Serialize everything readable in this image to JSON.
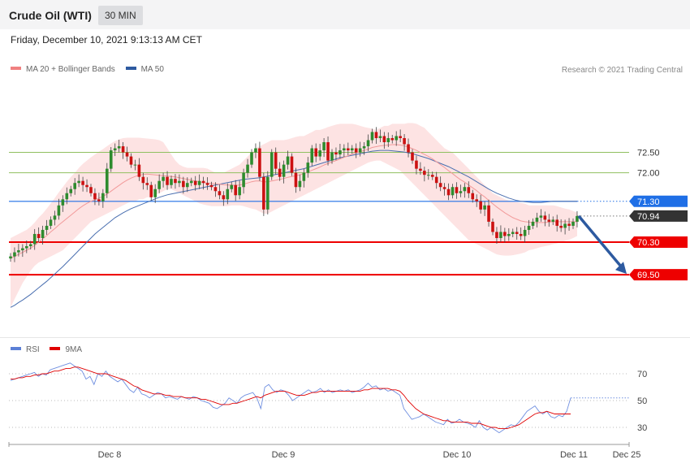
{
  "header": {
    "title": "Crude Oil (WTI)",
    "interval": "30 MIN"
  },
  "datetime": "Friday, December 10, 2021 9:13:13 AM CET",
  "legend_main": [
    {
      "label": "MA 20 + Bollinger Bands",
      "color": "#f08080"
    },
    {
      "label": "MA 50",
      "color": "#2d5aa0"
    }
  ],
  "copyright": "Research © 2021 Trading Central",
  "legend_rsi": [
    {
      "label": "RSI",
      "color": "#5b7fd6"
    },
    {
      "label": "9MA",
      "color": "#e00000"
    }
  ],
  "colors": {
    "up": "#2e8b2e",
    "down": "#cc1111",
    "level_red": "#ee0000",
    "level_blue": "#1f6fe6",
    "level_green": "#90c060",
    "arrow": "#2d5aa0",
    "last_price": "#333333",
    "band": "#fde3e3"
  },
  "chart_data": [
    {
      "type": "candlestick",
      "title": "Crude Oil (WTI)",
      "interval": "30 MIN",
      "x_ticks": [
        "Dec 8",
        "Dec 9",
        "Dec 10",
        "Dec 11",
        "Dec 25"
      ],
      "ylim": [
        68.6,
        73.2
      ],
      "levels": [
        {
          "value": 72.5,
          "label": "72.50",
          "style": "green-thin"
        },
        {
          "value": 72.0,
          "label": "72.00",
          "style": "green-thin"
        },
        {
          "value": 71.3,
          "label": "71.30",
          "style": "blue"
        },
        {
          "value": 70.94,
          "label": "70.94",
          "style": "last-price"
        },
        {
          "value": 70.3,
          "label": "70.30",
          "style": "red"
        },
        {
          "value": 69.5,
          "label": "69.50",
          "style": "red"
        }
      ],
      "close": [
        69.95,
        70.05,
        70.1,
        70.15,
        70.2,
        70.25,
        70.5,
        70.4,
        70.6,
        70.7,
        70.85,
        70.95,
        71.2,
        71.35,
        71.5,
        71.6,
        71.75,
        71.8,
        71.7,
        71.65,
        71.5,
        71.35,
        71.3,
        71.5,
        72.1,
        72.55,
        72.6,
        72.65,
        72.5,
        72.4,
        72.2,
        72.2,
        71.9,
        71.75,
        71.7,
        71.4,
        71.6,
        71.8,
        71.9,
        71.7,
        71.85,
        71.75,
        71.8,
        71.65,
        71.75,
        71.8,
        71.7,
        71.8,
        71.75,
        71.7,
        71.65,
        71.55,
        71.45,
        71.35,
        71.6,
        71.7,
        71.45,
        71.65,
        72.0,
        72.2,
        72.5,
        72.6,
        71.9,
        71.1,
        71.9,
        72.5,
        72.1,
        71.9,
        72.2,
        72.4,
        72.0,
        71.65,
        71.8,
        72.0,
        72.25,
        72.6,
        72.4,
        72.55,
        72.75,
        72.3,
        72.5,
        72.45,
        72.55,
        72.6,
        72.55,
        72.6,
        72.5,
        72.6,
        72.65,
        72.8,
        73.0,
        72.85,
        72.9,
        72.75,
        72.85,
        72.8,
        72.9,
        72.85,
        72.7,
        72.5,
        72.3,
        72.1,
        72.05,
        71.95,
        71.95,
        71.9,
        71.75,
        71.65,
        71.6,
        71.45,
        71.65,
        71.5,
        71.55,
        71.65,
        71.5,
        71.35,
        71.3,
        71.1,
        71.2,
        70.8,
        70.55,
        70.4,
        70.55,
        70.45,
        70.5,
        70.55,
        70.5,
        70.45,
        70.6,
        70.7,
        70.8,
        70.9,
        70.95,
        70.85,
        70.8,
        70.85,
        70.7,
        70.65,
        70.75,
        70.7,
        70.8,
        70.94
      ],
      "ma20": [
        69.9,
        69.95,
        70.0,
        70.05,
        70.1,
        70.15,
        70.22,
        70.3,
        70.38,
        70.46,
        70.55,
        70.63,
        70.72,
        70.8,
        70.88,
        70.96,
        71.04,
        71.12,
        71.19,
        71.25,
        71.3,
        71.34,
        71.38,
        71.42,
        71.48,
        71.55,
        71.62,
        71.69,
        71.76,
        71.82,
        71.87,
        71.91,
        71.94,
        71.96,
        71.97,
        71.96,
        71.95,
        71.94,
        71.93,
        71.92,
        71.91,
        71.9,
        71.88,
        71.86,
        71.84,
        71.82,
        71.8,
        71.78,
        71.76,
        71.75,
        71.74,
        71.73,
        71.72,
        71.71,
        71.7,
        71.7,
        71.69,
        71.7,
        71.72,
        71.75,
        71.78,
        71.8,
        71.8,
        71.78,
        71.78,
        71.8,
        71.82,
        71.84,
        71.86,
        71.89,
        71.91,
        71.93,
        71.95,
        71.98,
        72.02,
        72.06,
        72.1,
        72.14,
        72.19,
        72.23,
        72.27,
        72.3,
        72.34,
        72.38,
        72.42,
        72.46,
        72.49,
        72.52,
        72.55,
        72.58,
        72.62,
        72.64,
        72.66,
        72.67,
        72.68,
        72.69,
        72.69,
        72.68,
        72.66,
        72.63,
        72.59,
        72.55,
        72.5,
        72.45,
        72.4,
        72.34,
        72.27,
        72.2,
        72.13,
        72.05,
        71.98,
        71.9,
        71.83,
        71.77,
        71.7,
        71.63,
        71.56,
        71.48,
        71.41,
        71.32,
        71.24,
        71.16,
        71.09,
        71.02,
        70.96,
        70.9,
        70.86,
        70.82,
        70.8,
        70.79,
        70.78,
        70.78,
        70.78,
        70.78,
        70.79,
        70.8,
        70.8,
        70.8,
        70.8,
        70.8,
        70.8,
        70.8
      ],
      "bb_upper": [
        70.4,
        70.45,
        70.5,
        70.55,
        70.6,
        70.68,
        70.78,
        70.9,
        71.0,
        71.12,
        71.25,
        71.38,
        71.52,
        71.65,
        71.78,
        71.9,
        72.0,
        72.12,
        72.22,
        72.3,
        72.38,
        72.45,
        72.52,
        72.58,
        72.65,
        72.72,
        72.78,
        72.82,
        72.85,
        72.86,
        72.86,
        72.86,
        72.86,
        72.85,
        72.84,
        72.83,
        72.82,
        72.8,
        72.75,
        72.6,
        72.45,
        72.3,
        72.2,
        72.15,
        72.12,
        72.12,
        72.12,
        72.12,
        72.12,
        72.1,
        72.05,
        72.0,
        72.0,
        72.0,
        72.05,
        72.1,
        72.15,
        72.2,
        72.3,
        72.4,
        72.5,
        72.6,
        72.65,
        72.7,
        72.75,
        72.8,
        72.8,
        72.8,
        72.8,
        72.82,
        72.85,
        72.88,
        72.9,
        72.9,
        72.95,
        73.0,
        73.05,
        73.05,
        73.08,
        73.12,
        73.15,
        73.18,
        73.2,
        73.2,
        73.2,
        73.2,
        73.18,
        73.15,
        73.12,
        73.1,
        73.08,
        73.05,
        73.1,
        73.15,
        73.15,
        73.2,
        73.2,
        73.2,
        73.2,
        73.22,
        73.22,
        73.2,
        73.15,
        73.1,
        73.0,
        72.9,
        72.8,
        72.7,
        72.6,
        72.55,
        72.5,
        72.4,
        72.3,
        72.2,
        72.1,
        72.0,
        71.9,
        71.8,
        71.7,
        71.6,
        71.5,
        71.45,
        71.4,
        71.35,
        71.32,
        71.3,
        71.28,
        71.26,
        71.24,
        71.2,
        71.2,
        71.2,
        71.2,
        71.2,
        71.2,
        71.2,
        71.18,
        71.15,
        71.12,
        71.1,
        71.06,
        71.02
      ],
      "bb_lower": [
        68.7,
        68.9,
        69.1,
        69.3,
        69.45,
        69.6,
        69.72,
        69.8,
        69.85,
        69.9,
        69.95,
        70.0,
        70.05,
        70.1,
        70.2,
        70.3,
        70.4,
        70.5,
        70.6,
        70.7,
        70.8,
        70.85,
        70.9,
        70.95,
        71.0,
        71.05,
        71.1,
        71.15,
        71.2,
        71.25,
        71.3,
        71.3,
        71.35,
        71.35,
        71.4,
        71.4,
        71.45,
        71.5,
        71.55,
        71.6,
        71.6,
        71.55,
        71.5,
        71.45,
        71.4,
        71.35,
        71.3,
        71.25,
        71.22,
        71.2,
        71.18,
        71.18,
        71.18,
        71.18,
        71.18,
        71.2,
        71.2,
        71.2,
        71.18,
        71.15,
        71.12,
        71.1,
        71.05,
        71.0,
        71.0,
        71.05,
        71.1,
        71.15,
        71.2,
        71.25,
        71.3,
        71.35,
        71.4,
        71.45,
        71.5,
        71.55,
        71.6,
        71.65,
        71.7,
        71.75,
        71.8,
        71.85,
        71.9,
        71.95,
        72.0,
        72.05,
        72.1,
        72.15,
        72.2,
        72.25,
        72.28,
        72.3,
        72.3,
        72.25,
        72.2,
        72.15,
        72.1,
        72.05,
        71.95,
        71.85,
        71.75,
        71.65,
        71.55,
        71.45,
        71.35,
        71.25,
        71.15,
        71.05,
        70.95,
        70.85,
        70.75,
        70.65,
        70.55,
        70.45,
        70.35,
        70.3,
        70.25,
        70.2,
        70.15,
        70.1,
        70.05,
        70.0,
        69.98,
        69.97,
        69.97,
        69.98,
        70.0,
        70.02,
        70.05,
        70.1,
        70.12,
        70.15,
        70.18,
        70.2,
        70.22,
        70.25,
        70.27,
        70.3,
        70.33,
        70.36,
        70.4,
        70.45
      ],
      "ma50": [
        68.7,
        68.75,
        68.82,
        68.88,
        68.95,
        69.02,
        69.1,
        69.18,
        69.26,
        69.34,
        69.43,
        69.52,
        69.61,
        69.7,
        69.8,
        69.9,
        70.0,
        70.1,
        70.2,
        70.3,
        70.4,
        70.5,
        70.58,
        70.66,
        70.74,
        70.82,
        70.9,
        70.96,
        71.02,
        71.07,
        71.12,
        71.16,
        71.2,
        71.24,
        71.28,
        71.32,
        71.36,
        71.4,
        71.43,
        71.46,
        71.48,
        71.5,
        71.52,
        71.54,
        71.56,
        71.58,
        71.6,
        71.62,
        71.64,
        71.66,
        71.68,
        71.7,
        71.72,
        71.74,
        71.76,
        71.78,
        71.8,
        71.82,
        71.84,
        71.85,
        71.86,
        71.87,
        71.88,
        71.9,
        71.92,
        71.94,
        71.96,
        71.98,
        72.0,
        72.02,
        72.04,
        72.06,
        72.08,
        72.1,
        72.13,
        72.16,
        72.19,
        72.22,
        72.25,
        72.28,
        72.31,
        72.34,
        72.37,
        72.39,
        72.41,
        72.43,
        72.45,
        72.47,
        72.49,
        72.51,
        72.53,
        72.54,
        72.55,
        72.55,
        72.55,
        72.54,
        72.53,
        72.52,
        72.51,
        72.49,
        72.47,
        72.44,
        72.41,
        72.38,
        72.35,
        72.31,
        72.27,
        72.23,
        72.19,
        72.15,
        72.1,
        72.05,
        72.0,
        71.95,
        71.9,
        71.84,
        71.78,
        71.72,
        71.66,
        71.6,
        71.55,
        71.5,
        71.46,
        71.42,
        71.38,
        71.35,
        71.32,
        71.3,
        71.29,
        71.28,
        71.27,
        71.27,
        71.27,
        71.28,
        71.29,
        71.3,
        71.3,
        71.3,
        71.3,
        71.3,
        71.3,
        71.3
      ],
      "projection": [
        70.94,
        69.5
      ]
    },
    {
      "type": "line",
      "title": "RSI",
      "ylim": [
        20,
        80
      ],
      "y_ticks": [
        70,
        50,
        30
      ],
      "series": [
        {
          "name": "RSI",
          "values": [
            65,
            66,
            67,
            68,
            69,
            70,
            71,
            68,
            70,
            69,
            73,
            74,
            75,
            76,
            77,
            78,
            76,
            74,
            72,
            66,
            68,
            62,
            70,
            68,
            72,
            68,
            66,
            64,
            66,
            62,
            58,
            56,
            60,
            55,
            54,
            52,
            54,
            56,
            55,
            52,
            53,
            52,
            51,
            53,
            52,
            51,
            53,
            52,
            50,
            49,
            48,
            45,
            44,
            46,
            48,
            52,
            50,
            48,
            52,
            54,
            55,
            56,
            52,
            44,
            60,
            62,
            58,
            56,
            58,
            57,
            54,
            50,
            52,
            54,
            56,
            58,
            56,
            57,
            59,
            56,
            58,
            56,
            57,
            58,
            57,
            58,
            56,
            57,
            58,
            60,
            63,
            60,
            61,
            58,
            59,
            57,
            58,
            56,
            54,
            44,
            40,
            36,
            37,
            38,
            40,
            38,
            36,
            34,
            33,
            32,
            36,
            33,
            34,
            36,
            34,
            33,
            32,
            30,
            35,
            30,
            28,
            30,
            28,
            26,
            28,
            30,
            32,
            31,
            34,
            38,
            42,
            44,
            46,
            42,
            40,
            42,
            38,
            37,
            39,
            38,
            42,
            52
          ]
        },
        {
          "name": "9MA",
          "values": [
            66,
            66,
            67,
            67,
            68,
            68,
            69,
            69,
            70,
            70,
            71,
            72,
            72,
            73,
            74,
            74,
            75,
            75,
            74,
            73,
            72,
            71,
            70,
            70,
            70,
            69,
            68,
            67,
            66,
            65,
            63,
            61,
            60,
            58,
            57,
            56,
            55,
            55,
            55,
            54,
            54,
            53,
            53,
            53,
            52,
            52,
            52,
            52,
            51,
            51,
            50,
            49,
            48,
            47,
            47,
            47,
            48,
            48,
            49,
            50,
            51,
            52,
            53,
            52,
            54,
            55,
            56,
            57,
            57,
            57,
            56,
            55,
            54,
            54,
            54,
            55,
            56,
            56,
            57,
            57,
            57,
            57,
            57,
            57,
            57,
            57,
            57,
            57,
            57,
            58,
            58,
            59,
            59,
            59,
            59,
            59,
            58,
            58,
            57,
            54,
            50,
            47,
            44,
            42,
            40,
            39,
            38,
            37,
            36,
            35,
            35,
            34,
            34,
            34,
            34,
            34,
            33,
            33,
            33,
            32,
            31,
            30,
            30,
            29,
            29,
            29,
            30,
            31,
            32,
            34,
            36,
            38,
            40,
            41,
            41,
            42,
            41,
            40,
            40,
            40,
            40,
            40
          ]
        }
      ]
    }
  ]
}
